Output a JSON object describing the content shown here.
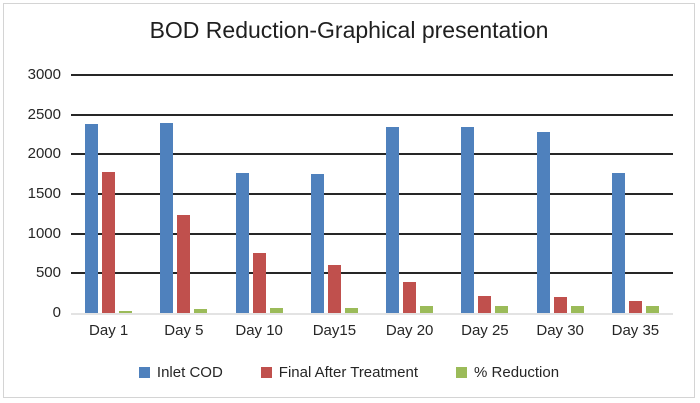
{
  "chart_data": {
    "type": "bar",
    "title": "BOD Reduction-Graphical presentation",
    "categories": [
      "Day 1",
      "Day 5",
      "Day 10",
      "Day15",
      "Day 20",
      "Day 25",
      "Day 30",
      "Day 35"
    ],
    "series": [
      {
        "name": "Inlet COD",
        "color": "#4F81BD",
        "values": [
          2380,
          2390,
          1765,
          1750,
          2340,
          2340,
          2280,
          1765
        ]
      },
      {
        "name": "Final After Treatment",
        "color": "#C0504D",
        "values": [
          1780,
          1240,
          760,
          610,
          385,
          215,
          205,
          150
        ]
      },
      {
        "name": "% Reduction",
        "color": "#9BBB59",
        "values": [
          25,
          48,
          57,
          65,
          84,
          90,
          90,
          91
        ]
      }
    ],
    "xlabel": "",
    "ylabel": "",
    "ylim": [
      0,
      3000
    ],
    "ytick_step": 500,
    "grid": "horizontal",
    "legend_position": "bottom"
  },
  "colors": {
    "gridline": "#262626",
    "baseline": "#e3e3e3",
    "frame_border": "#d4d4d4",
    "text": "#262626",
    "background": "#ffffff"
  }
}
